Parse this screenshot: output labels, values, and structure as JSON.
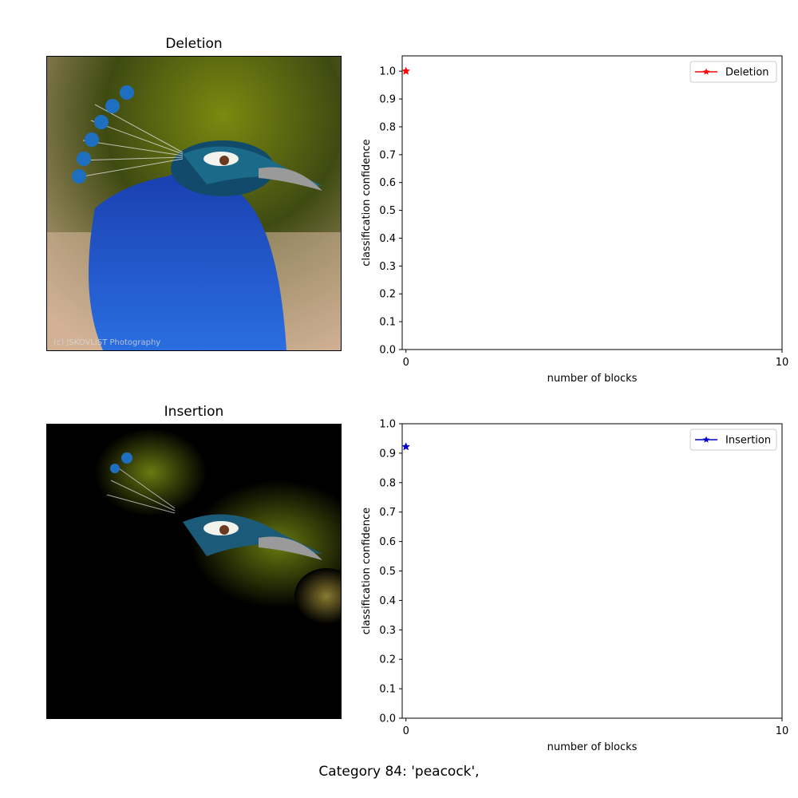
{
  "panels": {
    "deletion_title": "Deletion",
    "insertion_title": "Insertion",
    "watermark": "(c) JSKOVLIST Photography"
  },
  "caption": "Category  84: 'peacock',",
  "colors": {
    "deletion": "#ff0000",
    "insertion": "#0000cc"
  },
  "chart_data": [
    {
      "type": "line",
      "legend": "Deletion",
      "legend_position": "top-right",
      "marker": "star",
      "x": [
        0
      ],
      "y": [
        1.0
      ],
      "xlabel": "number of blocks",
      "ylabel": "classification confidence",
      "xlim": [
        -0.1,
        10
      ],
      "ylim": [
        0.0,
        1.055
      ],
      "xticks": [
        "0",
        "10"
      ],
      "yticks": [
        "0.0",
        "0.1",
        "0.2",
        "0.3",
        "0.4",
        "0.5",
        "0.6",
        "0.7",
        "0.8",
        "0.9",
        "1.0"
      ]
    },
    {
      "type": "line",
      "legend": "Insertion",
      "legend_position": "top-right",
      "marker": "star",
      "x": [
        0
      ],
      "y": [
        0.922
      ],
      "xlabel": "number of blocks",
      "ylabel": "classification confidence",
      "xlim": [
        -0.1,
        10
      ],
      "ylim": [
        0.0,
        1.0
      ],
      "xticks": [
        "0",
        "10"
      ],
      "yticks": [
        "0.0",
        "0.1",
        "0.2",
        "0.3",
        "0.4",
        "0.5",
        "0.6",
        "0.7",
        "0.8",
        "0.9",
        "1.0"
      ]
    }
  ]
}
